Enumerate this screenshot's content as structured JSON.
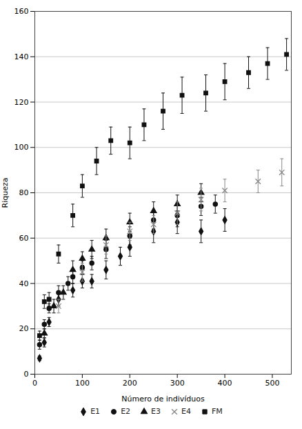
{
  "chart_data": {
    "type": "scatter",
    "xlabel": "Número de indivíduos",
    "ylabel": "Riqueza",
    "xlim": [
      0,
      540
    ],
    "ylim": [
      0,
      160
    ],
    "xticks": [
      0,
      100,
      200,
      300,
      400,
      500
    ],
    "yticks": [
      0,
      20,
      40,
      60,
      80,
      100,
      120,
      140,
      160
    ],
    "grid": "y",
    "legend": "bottom",
    "series": [
      {
        "name": "E1",
        "color": "#111111",
        "marker": "diamond",
        "x": [
          10,
          20,
          30,
          50,
          80,
          100,
          120,
          150,
          180,
          200,
          250,
          300,
          350,
          400
        ],
        "values": [
          7,
          14,
          23,
          33,
          37,
          41,
          41,
          46,
          52,
          56,
          63,
          67,
          63,
          68
        ],
        "yerr": [
          1,
          2,
          2,
          3,
          3,
          3,
          3,
          4,
          4,
          4,
          5,
          5,
          5,
          5
        ]
      },
      {
        "name": "E2",
        "color": "#111111",
        "marker": "circle",
        "x": [
          10,
          20,
          30,
          50,
          70,
          80,
          100,
          120,
          150,
          200,
          250,
          300,
          350,
          380
        ],
        "values": [
          13,
          22,
          29,
          36,
          40,
          43,
          47,
          49,
          55,
          61,
          68,
          70,
          74,
          75
        ],
        "yerr": [
          2,
          2,
          2,
          3,
          3,
          3,
          3,
          3,
          4,
          4,
          4,
          5,
          4,
          4
        ]
      },
      {
        "name": "E3",
        "color": "#111111",
        "marker": "triangle",
        "x": [
          20,
          40,
          60,
          80,
          100,
          120,
          150,
          200,
          250,
          300,
          350
        ],
        "values": [
          18,
          30,
          36,
          46,
          51,
          55,
          60,
          67,
          72,
          75,
          80
        ],
        "yerr": [
          2,
          3,
          3,
          4,
          3,
          4,
          4,
          4,
          4,
          4,
          4
        ]
      },
      {
        "name": "E4",
        "color": "#888888",
        "marker": "x",
        "x": [
          50,
          100,
          150,
          200,
          250,
          300,
          350,
          400,
          470,
          520
        ],
        "values": [
          30,
          45,
          57,
          63,
          66,
          71,
          77,
          81,
          85,
          89
        ],
        "yerr": [
          3,
          4,
          4,
          4,
          4,
          5,
          5,
          5,
          5,
          6
        ]
      },
      {
        "name": "FM",
        "color": "#111111",
        "marker": "square",
        "x": [
          10,
          20,
          30,
          50,
          80,
          100,
          130,
          160,
          200,
          230,
          270,
          310,
          360,
          400,
          450,
          490,
          530
        ],
        "values": [
          17,
          32,
          33,
          53,
          70,
          83,
          94,
          103,
          102,
          110,
          116,
          123,
          124,
          129,
          133,
          137,
          141
        ],
        "yerr": [
          2,
          3,
          3,
          4,
          5,
          5,
          6,
          6,
          7,
          7,
          8,
          8,
          8,
          8,
          7,
          7,
          7
        ]
      }
    ]
  }
}
